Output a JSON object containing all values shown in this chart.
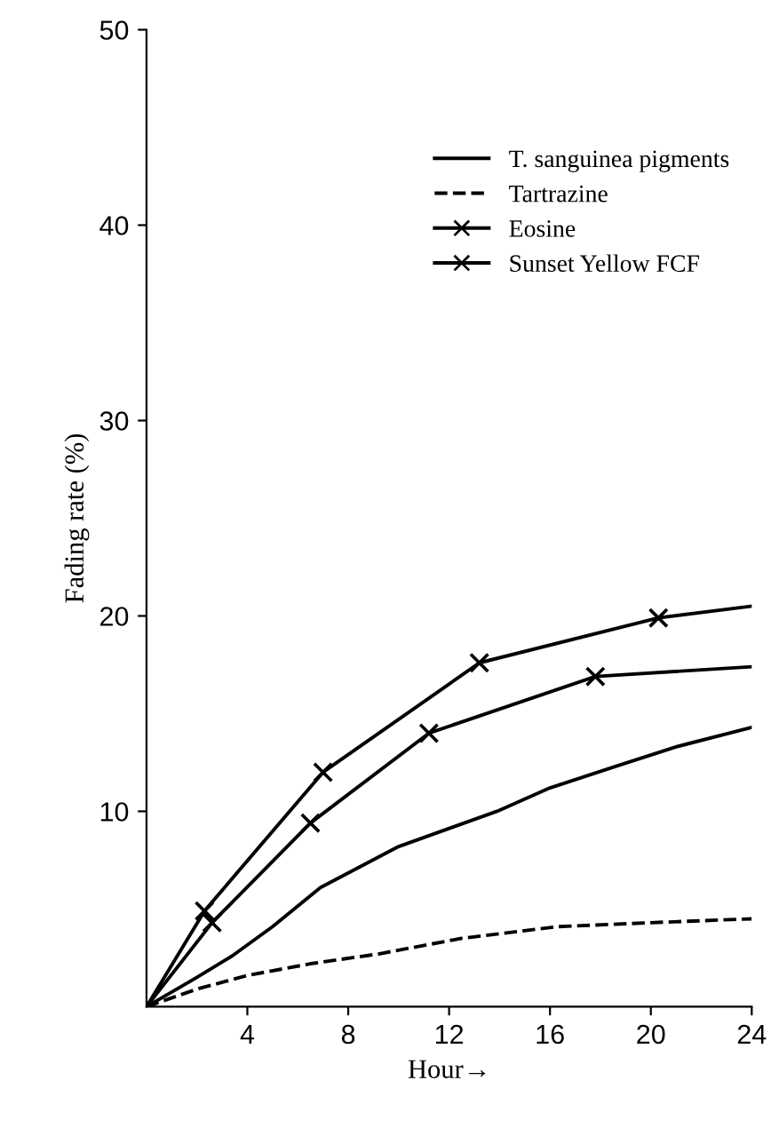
{
  "chart_data": {
    "type": "line",
    "xlabel": "Hour→",
    "ylabel": "Fading rate (%)",
    "xlim": [
      0,
      24
    ],
    "ylim": [
      0,
      50
    ],
    "xticks": [
      4,
      8,
      12,
      16,
      20,
      24
    ],
    "yticks": [
      10,
      20,
      30,
      40,
      50
    ],
    "grid": false,
    "legend": "top right",
    "line_style": "solid",
    "marker": "none",
    "series": [
      {
        "name": "T. sanguinea pigments",
        "color": "#000000",
        "x": [
          0,
          2,
          3.4,
          5,
          6.9,
          10,
          13.9,
          16,
          18.6,
          21,
          24
        ],
        "values": [
          0,
          1.5,
          2.6,
          4.1,
          6.1,
          8.2,
          10.0,
          11.2,
          12.3,
          13.3,
          14.3
        ]
      },
      {
        "name": "Tartrazine",
        "color": "#000000",
        "line_style": "dashed",
        "x": [
          0,
          2,
          4,
          6.5,
          9.2,
          12.5,
          16.3,
          20,
          24
        ],
        "values": [
          0,
          0.9,
          1.6,
          2.2,
          2.7,
          3.5,
          4.1,
          4.3,
          4.5
        ]
      },
      {
        "name": "Eosine",
        "color": "#000000",
        "marker": "cross",
        "x": [
          0,
          2.6,
          6.5,
          11.2,
          17.8,
          24
        ],
        "values": [
          0,
          4.3,
          9.4,
          14.0,
          16.9,
          17.4
        ]
      },
      {
        "name": "Sunset Yellow FCF",
        "color": "#000000",
        "marker": "cross",
        "x": [
          0,
          2.3,
          7.0,
          13.2,
          20.3,
          24
        ],
        "values": [
          0,
          4.9,
          12.0,
          17.6,
          19.9,
          20.5
        ]
      }
    ]
  }
}
